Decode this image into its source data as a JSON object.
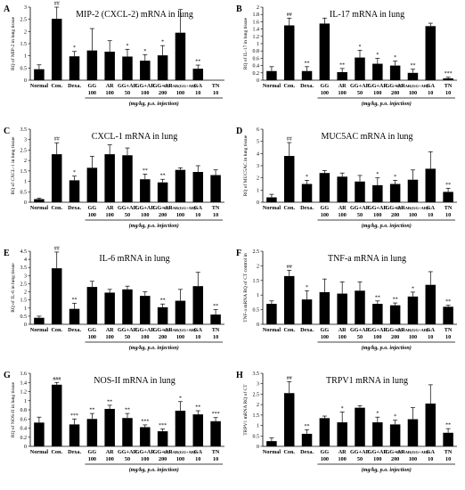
{
  "figure": {
    "x_tick_rows": {
      "row1": [
        "Normal",
        "Con.",
        "Dexa.",
        "GG",
        "AR",
        "GG+AR",
        "GG+AR",
        "GG+AR",
        "GG+AR(GG+AR)³",
        "GA",
        "TN"
      ],
      "row2": [
        "",
        "",
        "",
        "100",
        "100",
        "50",
        "100",
        "200",
        "100",
        "10",
        "10"
      ]
    },
    "group_caption": "(mg/kg, p.o. injection)"
  },
  "chart_data": [
    {
      "type": "bar",
      "panel": "A",
      "title": "MIP-2 (CXCL-2) mRNA in lung",
      "ylabel": "RQ of MIP-2 in lung tissue",
      "ylim": [
        0,
        3.0
      ],
      "yticks": [
        0,
        0.5,
        1,
        1.5,
        2,
        2.5,
        3
      ],
      "yticklabels": [
        "0",
        "0.5",
        "1",
        "1.5",
        "2",
        "2.5",
        "3"
      ],
      "categories": [
        "Normal",
        "Con.",
        "Dexa.",
        "GG 100",
        "AR 100",
        "GG+AR 50",
        "GG+AR 100",
        "GG+AR 200",
        "GG+AR(GG+AR)³ 100",
        "GA 10",
        "TN 10"
      ],
      "values": [
        0.45,
        2.52,
        0.98,
        1.22,
        1.17,
        0.97,
        0.8,
        1.02,
        1.95,
        0.47,
        null
      ],
      "errors": [
        0.18,
        0.55,
        0.2,
        0.9,
        0.45,
        0.3,
        0.25,
        0.4,
        0.95,
        0.15,
        0
      ],
      "labels": [
        "",
        "##",
        "*",
        "",
        "",
        "*",
        "*",
        "*",
        "",
        "**",
        ""
      ]
    },
    {
      "type": "bar",
      "panel": "B",
      "title": "IL-17 mRNA in lung",
      "ylabel": "RQ of IL-17 in lung tissue",
      "ylim": [
        0,
        2.0
      ],
      "yticks": [
        0,
        0.2,
        0.4,
        0.6,
        0.8,
        1,
        1.2,
        1.4,
        1.6,
        1.8,
        2
      ],
      "yticklabels": [
        "0",
        "0.2",
        "0.4",
        "0.6",
        "0.8",
        "1",
        "1.2",
        "1.4",
        "1.6",
        "1.8",
        "2"
      ],
      "categories": [
        "Normal",
        "Con.",
        "Dexa.",
        "GG 100",
        "AR 100",
        "GG+AR 50",
        "GG+AR 100",
        "GG+AR 200",
        "GG+AR(GG+AR)³ 100",
        "GA 10",
        "TN 10"
      ],
      "values": [
        0.25,
        1.5,
        0.25,
        1.55,
        0.22,
        0.62,
        0.45,
        0.4,
        0.2,
        1.48,
        0.05
      ],
      "errors": [
        0.12,
        0.2,
        0.12,
        0.15,
        0.1,
        0.2,
        0.15,
        0.12,
        0.1,
        0.08,
        0.03
      ],
      "labels": [
        "",
        "##",
        "**",
        "",
        "**",
        "*",
        "*",
        "*",
        "**",
        "",
        "***"
      ]
    },
    {
      "type": "bar",
      "panel": "C",
      "title": "CXCL-1 mRNA in lung",
      "ylabel": "RQ of CXCL-1 in lung tissue",
      "ylim": [
        0,
        3.5
      ],
      "yticks": [
        0,
        0.5,
        1,
        1.5,
        2,
        2.5,
        3,
        3.5
      ],
      "yticklabels": [
        "0",
        "0.5",
        "1",
        "1.5",
        "2",
        "2.5",
        "3",
        "3.5"
      ],
      "categories": [
        "Normal",
        "Con.",
        "Dexa.",
        "GG 100",
        "AR 100",
        "GG+AR 50",
        "GG+AR 100",
        "GG+AR 200",
        "GG+AR(GG+AR)³ 100",
        "GA 10",
        "TN 10"
      ],
      "values": [
        0.15,
        2.3,
        1.05,
        1.65,
        2.3,
        2.25,
        1.1,
        0.95,
        1.55,
        1.45,
        1.3
      ],
      "errors": [
        0.05,
        0.55,
        0.2,
        0.55,
        0.45,
        0.35,
        0.25,
        0.15,
        0.1,
        0.3,
        0.25
      ],
      "labels": [
        "",
        "##",
        "*",
        "",
        "",
        "",
        "**",
        "**",
        "",
        "",
        ""
      ]
    },
    {
      "type": "bar",
      "panel": "D",
      "title": "MUC5AC mRNA in lung",
      "ylabel": "RQ of MUC5AC in lung tissue",
      "ylim": [
        0,
        6
      ],
      "yticks": [
        0,
        1,
        2,
        3,
        4,
        5,
        6
      ],
      "yticklabels": [
        "0",
        "1",
        "2",
        "3",
        "4",
        "5",
        "6"
      ],
      "categories": [
        "Normal",
        "Con.",
        "Dexa.",
        "GG 100",
        "AR 100",
        "GG+AR 50",
        "GG+AR 100",
        "GG+AR 200",
        "GG+AR(GG+AR)³ 100",
        "GA 10",
        "TN 10"
      ],
      "values": [
        0.4,
        3.8,
        1.5,
        2.4,
        2.1,
        1.7,
        1.4,
        1.5,
        1.85,
        2.75,
        0.85
      ],
      "errors": [
        0.25,
        1.1,
        0.3,
        0.2,
        0.3,
        0.5,
        0.6,
        0.3,
        0.8,
        1.4,
        0.3
      ],
      "labels": [
        "",
        "##",
        "*",
        "",
        "",
        "",
        "*",
        "*",
        "",
        "",
        "**"
      ]
    },
    {
      "type": "bar",
      "panel": "E",
      "title": "IL-6 mRNA in lung",
      "ylabel": "RQ of IL-6 in lung tissue",
      "ylim": [
        0,
        4.5
      ],
      "yticks": [
        0,
        0.5,
        1,
        1.5,
        2,
        2.5,
        3,
        3.5,
        4,
        4.5
      ],
      "yticklabels": [
        "0",
        "0.5",
        "1",
        "1.5",
        "2",
        "2.5",
        "3",
        "3.5",
        "4",
        "4.5"
      ],
      "categories": [
        "Normal",
        "Con.",
        "Dexa.",
        "GG 100",
        "AR 100",
        "GG+AR 50",
        "GG+AR 100",
        "GG+AR 200",
        "GG+AR(GG+AR)³ 100",
        "GA 10",
        "TN 10"
      ],
      "values": [
        0.4,
        3.45,
        0.95,
        2.3,
        1.95,
        2.15,
        1.75,
        1.05,
        1.45,
        2.35,
        0.6
      ],
      "errors": [
        0.1,
        1.0,
        0.35,
        0.35,
        0.2,
        0.2,
        0.25,
        0.2,
        0.7,
        0.85,
        0.3
      ],
      "labels": [
        "",
        "##",
        "**",
        "",
        "",
        "",
        "",
        "**",
        "",
        "",
        "**"
      ]
    },
    {
      "type": "bar",
      "panel": "F",
      "title": "TNF-a mRNA in lung",
      "ylabel": "TNF-a mRNA RQ of CT control in",
      "ylim": [
        0,
        2.5
      ],
      "yticks": [
        0,
        0.5,
        1,
        1.5,
        2,
        2.5
      ],
      "yticklabels": [
        "0",
        "0.5",
        "1",
        "1.5",
        "2",
        "2.5"
      ],
      "categories": [
        "Normal",
        "Con.",
        "Dexa.",
        "GG 100",
        "AR 100",
        "GG+AR 50",
        "GG+AR 100",
        "GG+AR 200",
        "GG+AR(GG+AR)³ 100",
        "GA 10",
        "TN 10"
      ],
      "values": [
        0.7,
        1.65,
        0.85,
        1.1,
        1.05,
        1.15,
        0.7,
        0.65,
        0.95,
        1.35,
        0.6
      ],
      "errors": [
        0.1,
        0.2,
        0.3,
        0.45,
        0.4,
        0.3,
        0.1,
        0.08,
        0.15,
        0.45,
        0.05
      ],
      "labels": [
        "",
        "##",
        "*",
        "",
        "",
        "",
        "**",
        "**",
        "*",
        "",
        "**"
      ]
    },
    {
      "type": "bar",
      "panel": "G",
      "title": "NOS-II mRNA in lung",
      "ylabel": "RQ of NOS-II in lung tissue",
      "ylim": [
        0,
        1.6
      ],
      "yticks": [
        0,
        0.2,
        0.4,
        0.6,
        0.8,
        1,
        1.2,
        1.4,
        1.6
      ],
      "yticklabels": [
        "0",
        "0.2",
        "0.4",
        "0.6",
        "0.8",
        "1",
        "1.2",
        "1.4",
        "1.6"
      ],
      "categories": [
        "Normal",
        "Con.",
        "Dexa.",
        "GG 100",
        "AR 100",
        "GG+AR 50",
        "GG+AR 100",
        "GG+AR 200",
        "GG+AR(GG+AR)³ 100",
        "GA 10",
        "TN 10"
      ],
      "values": [
        0.52,
        1.35,
        0.48,
        0.6,
        0.82,
        0.62,
        0.42,
        0.33,
        0.78,
        0.7,
        0.55
      ],
      "errors": [
        0.12,
        0.05,
        0.12,
        0.12,
        0.08,
        0.1,
        0.05,
        0.05,
        0.2,
        0.08,
        0.08
      ],
      "labels": [
        "",
        "###",
        "***",
        "**",
        "**",
        "**",
        "***",
        "***",
        "*",
        "**",
        "***"
      ]
    },
    {
      "type": "bar",
      "panel": "H",
      "title": "TRPV1 mRNA in lung",
      "ylabel": "TRPV1 mRNA RQ of CT",
      "ylim": [
        0,
        3.5
      ],
      "yticks": [
        0,
        0.5,
        1,
        1.5,
        2,
        2.5,
        3,
        3.5
      ],
      "yticklabels": [
        "0",
        "0.5",
        "1",
        "1.5",
        "2",
        "2.5",
        "3",
        "3.5"
      ],
      "categories": [
        "Normal",
        "Con.",
        "Dexa.",
        "GG 100",
        "AR 100",
        "GG+AR 50",
        "GG+AR 100",
        "GG+AR 200",
        "GG+AR(GG+AR)³ 100",
        "GA 10",
        "TN 10"
      ],
      "values": [
        0.25,
        2.55,
        0.6,
        1.35,
        1.15,
        1.85,
        1.15,
        1.05,
        1.3,
        2.05,
        0.65
      ],
      "errors": [
        0.15,
        0.55,
        0.2,
        0.1,
        0.5,
        0.1,
        0.25,
        0.2,
        0.55,
        0.9,
        0.2
      ],
      "labels": [
        "",
        "##",
        "**",
        "",
        "*",
        "",
        "*",
        "*",
        "",
        "",
        "**"
      ]
    }
  ]
}
